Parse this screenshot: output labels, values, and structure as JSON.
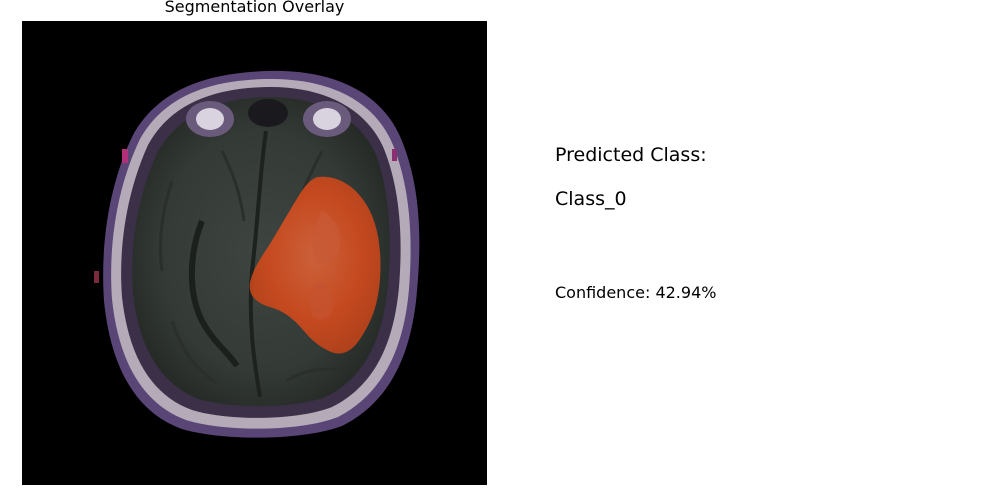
{
  "overlay_panel": {
    "title": "Segmentation Overlay",
    "image_icon": "mri-axial-brain-scan",
    "overlay_color": "#d8461c"
  },
  "prediction": {
    "heading": "Predicted Class:",
    "class_name": "Class_0",
    "confidence_text": "Confidence: 42.94%",
    "confidence_value": 42.94
  }
}
